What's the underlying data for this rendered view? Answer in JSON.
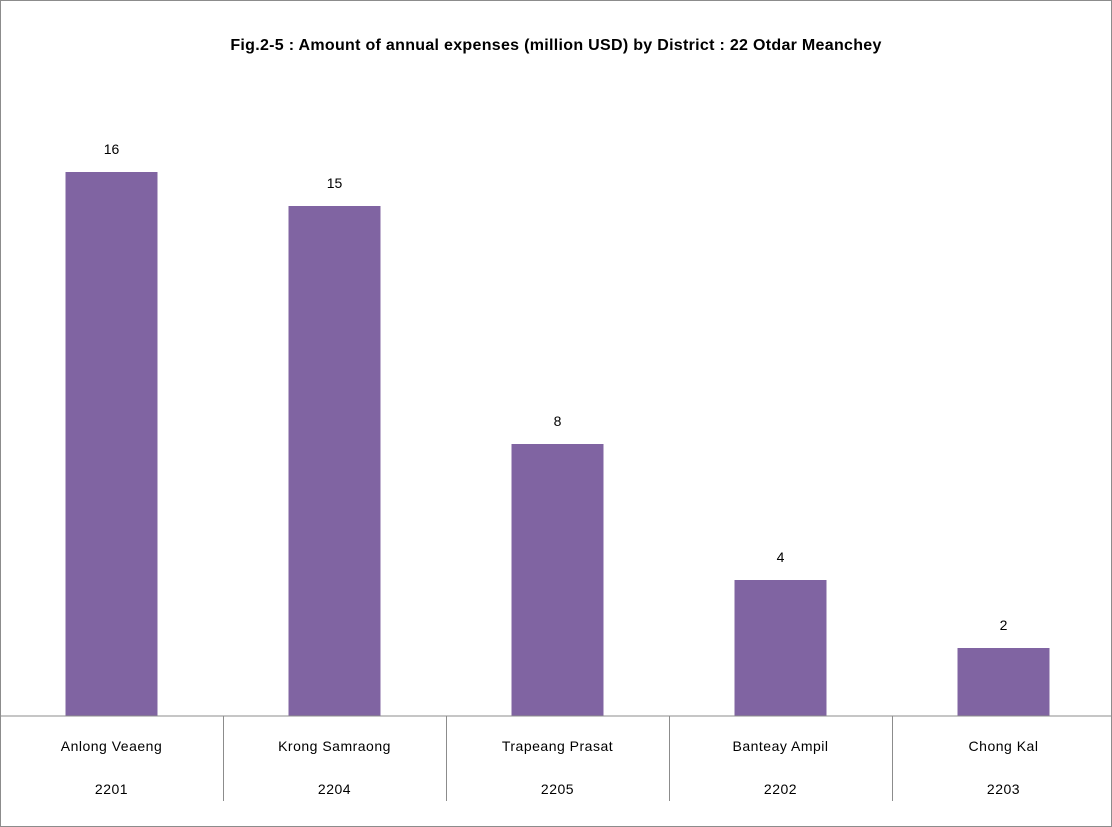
{
  "chart_data": {
    "type": "bar",
    "title": "Fig.2-5 : Amount of annual expenses (million USD) by District : 22 Otdar Meanchey",
    "categories": [
      "Anlong Veaeng",
      "Krong Samraong",
      "Trapeang Prasat",
      "Banteay Ampil",
      "Chong Kal"
    ],
    "codes": [
      "2201",
      "2204",
      "2205",
      "2202",
      "2203"
    ],
    "values": [
      16,
      15,
      8,
      4,
      2
    ],
    "bar_color": "#8064a2",
    "grid": false,
    "legend": "none"
  }
}
